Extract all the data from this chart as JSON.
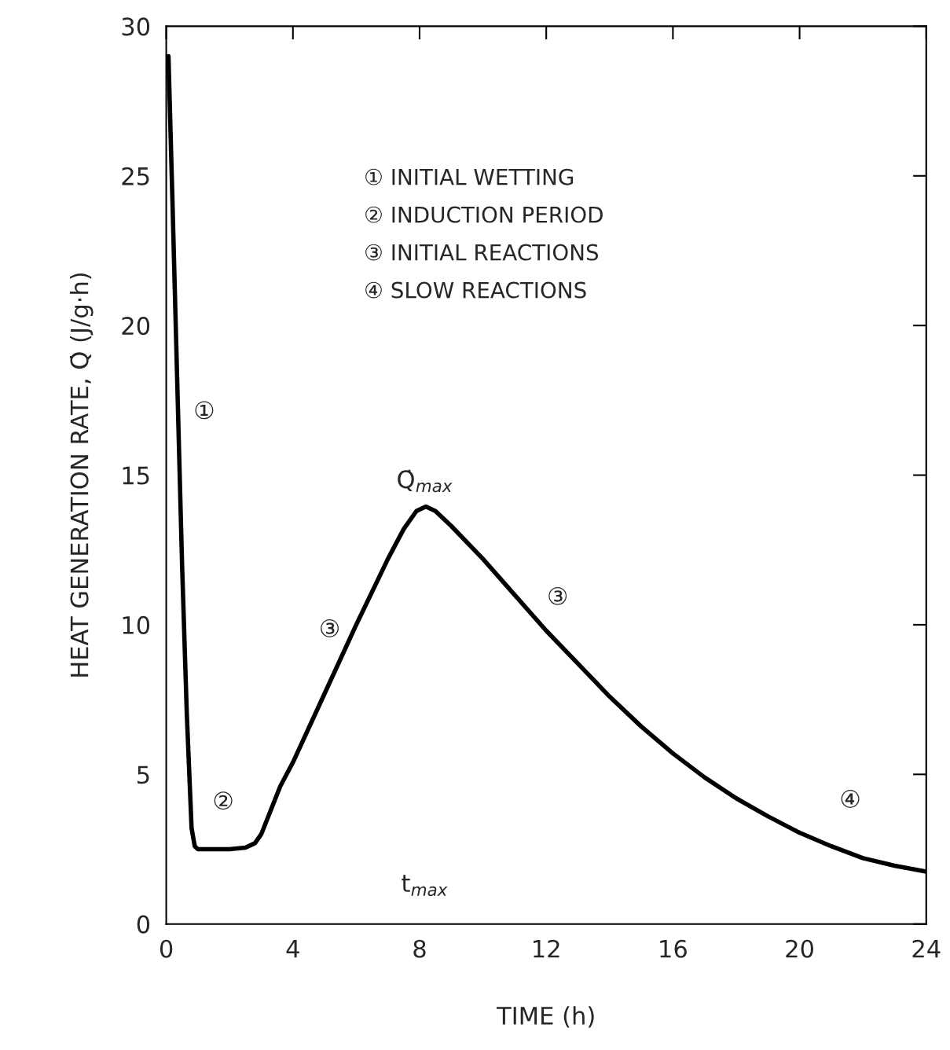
{
  "chart_data": {
    "type": "line",
    "xlabel": "TIME (h)",
    "ylabel": "HEAT GENERATION RATE, Q̇ (J/g·h)",
    "xlim": [
      0,
      24
    ],
    "ylim": [
      0,
      30
    ],
    "xticks": [
      0,
      4,
      8,
      12,
      16,
      20,
      24
    ],
    "yticks": [
      0,
      5,
      10,
      15,
      20,
      25,
      30
    ],
    "grid": false,
    "legend": false,
    "series": [
      {
        "color": "#000000",
        "x": [
          0.07,
          0.2,
          0.35,
          0.5,
          0.65,
          0.8,
          0.9,
          1.0,
          1.5,
          2.0,
          2.5,
          2.8,
          3.0,
          3.3,
          3.6,
          4.0,
          5.0,
          6.0,
          7.0,
          7.5,
          7.9,
          8.2,
          8.5,
          9.0,
          10.0,
          11.0,
          12.0,
          13.0,
          14.0,
          15.0,
          16.0,
          17.0,
          18.0,
          19.0,
          20.0,
          21.0,
          22.0,
          23.0,
          24.0
        ],
        "values": [
          29,
          24,
          18,
          12,
          7,
          3.2,
          2.6,
          2.5,
          2.5,
          2.5,
          2.55,
          2.7,
          3.0,
          3.8,
          4.6,
          5.4,
          7.7,
          10.0,
          12.2,
          13.2,
          13.8,
          13.95,
          13.8,
          13.3,
          12.2,
          11.0,
          9.8,
          8.7,
          7.6,
          6.6,
          5.7,
          4.9,
          4.2,
          3.6,
          3.05,
          2.6,
          2.2,
          1.95,
          1.75
        ]
      }
    ],
    "annotations": [
      "① INITIAL WETTING",
      "② INDUCTION PERIOD",
      "③ INITIAL REACTIONS",
      "④ SLOW REACTIONS",
      "①",
      "②",
      "③",
      "③",
      "④",
      "Q̇$_{max}$",
      "t$_{max}$"
    ]
  }
}
